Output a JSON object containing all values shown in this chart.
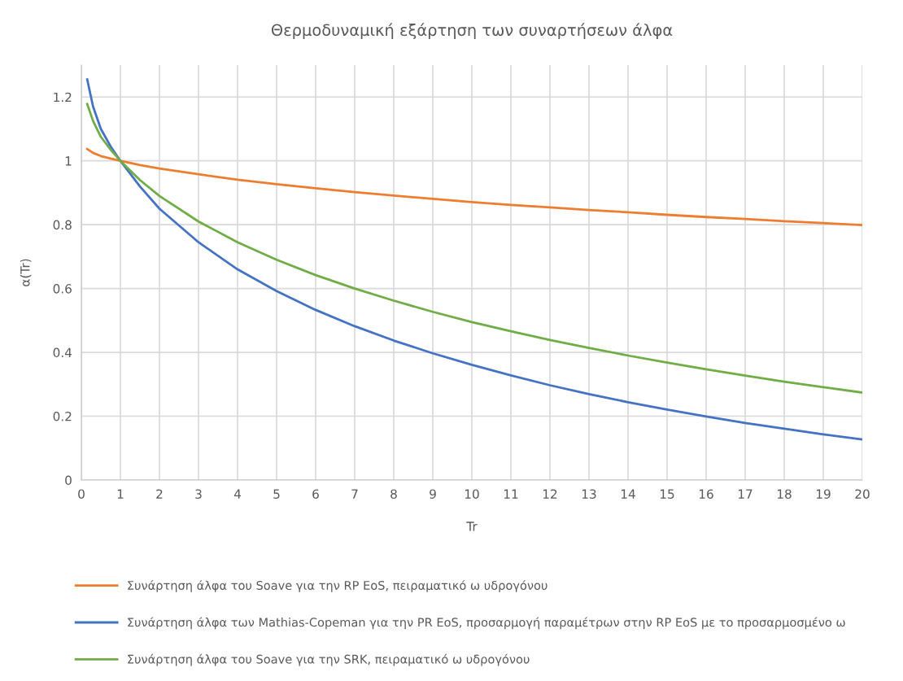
{
  "chart_data": {
    "type": "line",
    "title": "Θερμοδυναμική εξάρτηση των συναρτήσεων άλφα",
    "xlabel": "Tr",
    "ylabel": "α(Tr)",
    "x": [
      0.15,
      0.3,
      0.5,
      0.75,
      1,
      1.5,
      2,
      3,
      4,
      5,
      6,
      7,
      8,
      9,
      10,
      11,
      12,
      13,
      14,
      15,
      16,
      17,
      18,
      19,
      20
    ],
    "series": [
      {
        "name": "Συνάρτηση άλφα του Soave για την RP EoS, πειραματικό ω υδρογόνου",
        "color": "#ed7d31",
        "values": [
          1.037,
          1.025,
          1.015,
          1.007,
          1.0,
          0.987,
          0.976,
          0.958,
          0.941,
          0.927,
          0.914,
          0.902,
          0.891,
          0.881,
          0.871,
          0.862,
          0.854,
          0.846,
          0.839,
          0.831,
          0.824,
          0.818,
          0.811,
          0.805,
          0.799
        ]
      },
      {
        "name": "Συνάρτηση άλφα των Mathias-Copeman για την PR EoS, προσαρμογή παραμέτρων στην RP EoS με το προσαρμοσμένο ω",
        "color": "#4472c4",
        "values": [
          1.255,
          1.17,
          1.1,
          1.045,
          1.0,
          0.92,
          0.85,
          0.745,
          0.66,
          0.592,
          0.533,
          0.482,
          0.437,
          0.397,
          0.361,
          0.328,
          0.297,
          0.269,
          0.244,
          0.221,
          0.199,
          0.179,
          0.161,
          0.143,
          0.127
        ]
      },
      {
        "name": "Συνάρτηση άλφα του Soave για την SRK, πειραματικό ω υδρογόνου",
        "color": "#70ad47",
        "values": [
          1.178,
          1.125,
          1.075,
          1.035,
          1.0,
          0.94,
          0.89,
          0.81,
          0.745,
          0.69,
          0.642,
          0.6,
          0.562,
          0.527,
          0.495,
          0.466,
          0.439,
          0.414,
          0.39,
          0.368,
          0.347,
          0.327,
          0.308,
          0.291,
          0.274
        ]
      }
    ],
    "xlim": [
      0,
      20
    ],
    "xticks": [
      0,
      1,
      2,
      3,
      4,
      5,
      6,
      7,
      8,
      9,
      10,
      11,
      12,
      13,
      14,
      15,
      16,
      17,
      18,
      19,
      20
    ],
    "ylim": [
      0,
      1.3
    ],
    "yticks": [
      0,
      0.2,
      0.4,
      0.6,
      0.8,
      1,
      1.2
    ],
    "grid": true,
    "legend": "bottom",
    "marker": "none",
    "line_style": "solid"
  }
}
